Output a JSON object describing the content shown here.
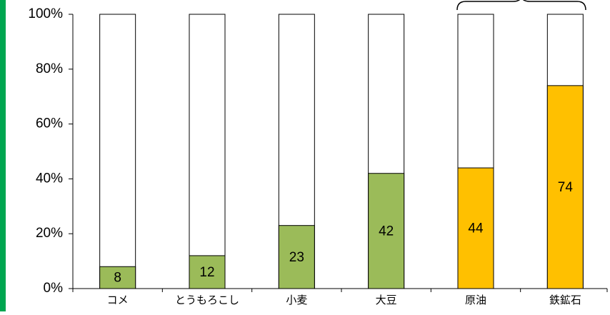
{
  "chart_data": {
    "type": "bar",
    "categories": [
      "コメ",
      "とうもろこし",
      "小麦",
      "大豆",
      "原油",
      "鉄鉱石"
    ],
    "values": [
      8,
      12,
      23,
      42,
      44,
      74
    ],
    "colors": [
      "#9bbb59",
      "#9bbb59",
      "#9bbb59",
      "#9bbb59",
      "#ffc000",
      "#ffc000"
    ],
    "ylim": [
      0,
      100
    ],
    "yticks": [
      {
        "value": 0,
        "label": "0%"
      },
      {
        "value": 20,
        "label": "20%"
      },
      {
        "value": 40,
        "label": "40%"
      },
      {
        "value": 60,
        "label": "60%"
      },
      {
        "value": 80,
        "label": "80%"
      },
      {
        "value": 100,
        "label": "100%"
      }
    ]
  }
}
